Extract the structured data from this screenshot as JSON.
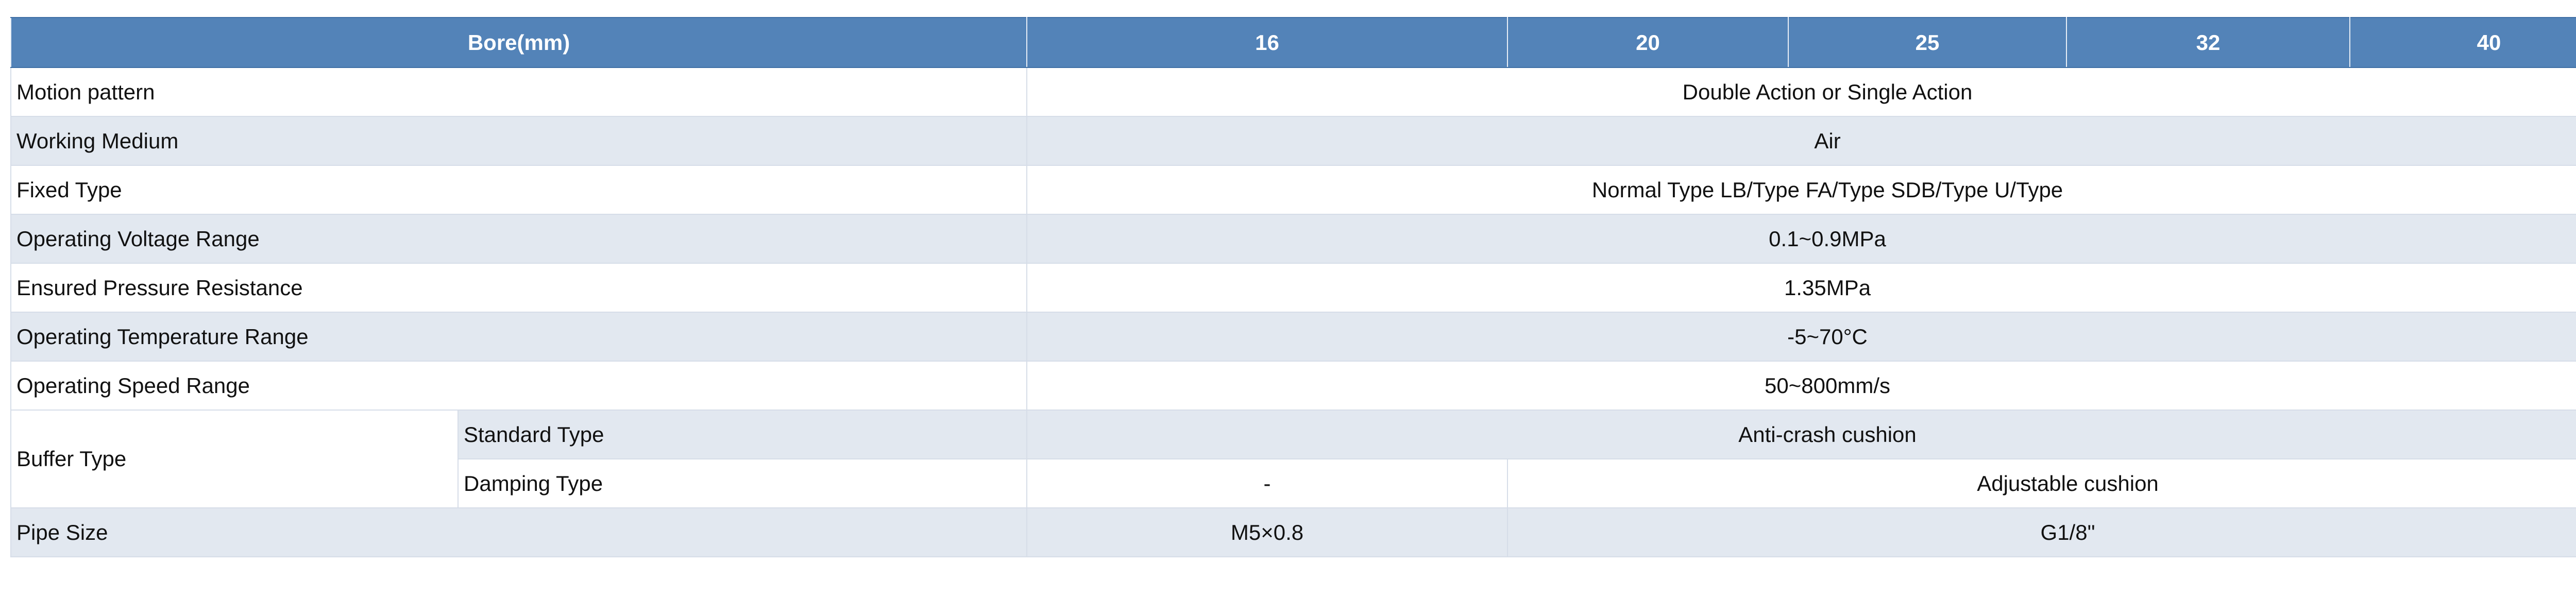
{
  "header": {
    "label": "Bore(mm)",
    "bores": [
      "16",
      "20",
      "25",
      "32",
      "40"
    ]
  },
  "rows": [
    {
      "label": "Motion pattern",
      "value": "Double Action or Single Action"
    },
    {
      "label": "Working Medium",
      "value": "Air"
    },
    {
      "label": "Fixed Type",
      "value": "Normal Type LB/Type FA/Type SDB/Type U/Type"
    },
    {
      "label": "Operating Voltage Range",
      "value": "0.1~0.9MPa"
    },
    {
      "label": "Ensured Pressure Resistance",
      "value": "1.35MPa"
    },
    {
      "label": "Operating Temperature Range",
      "value": "-5~70°C"
    },
    {
      "label": "Operating Speed Range",
      "value": "50~800mm/s"
    }
  ],
  "buffer": {
    "label": "Buffer Type",
    "standard": {
      "label": "Standard Type",
      "value": "Anti-crash cushion"
    },
    "damping": {
      "label": "Damping Type",
      "value_16": "-",
      "value_rest": "Adjustable cushion"
    }
  },
  "pipe": {
    "label": "Pipe Size",
    "value_16": "M5×0.8",
    "value_rest": "G1/8\""
  },
  "colors": {
    "header": "#5383b8",
    "alt_row": "#e2e8f0"
  }
}
